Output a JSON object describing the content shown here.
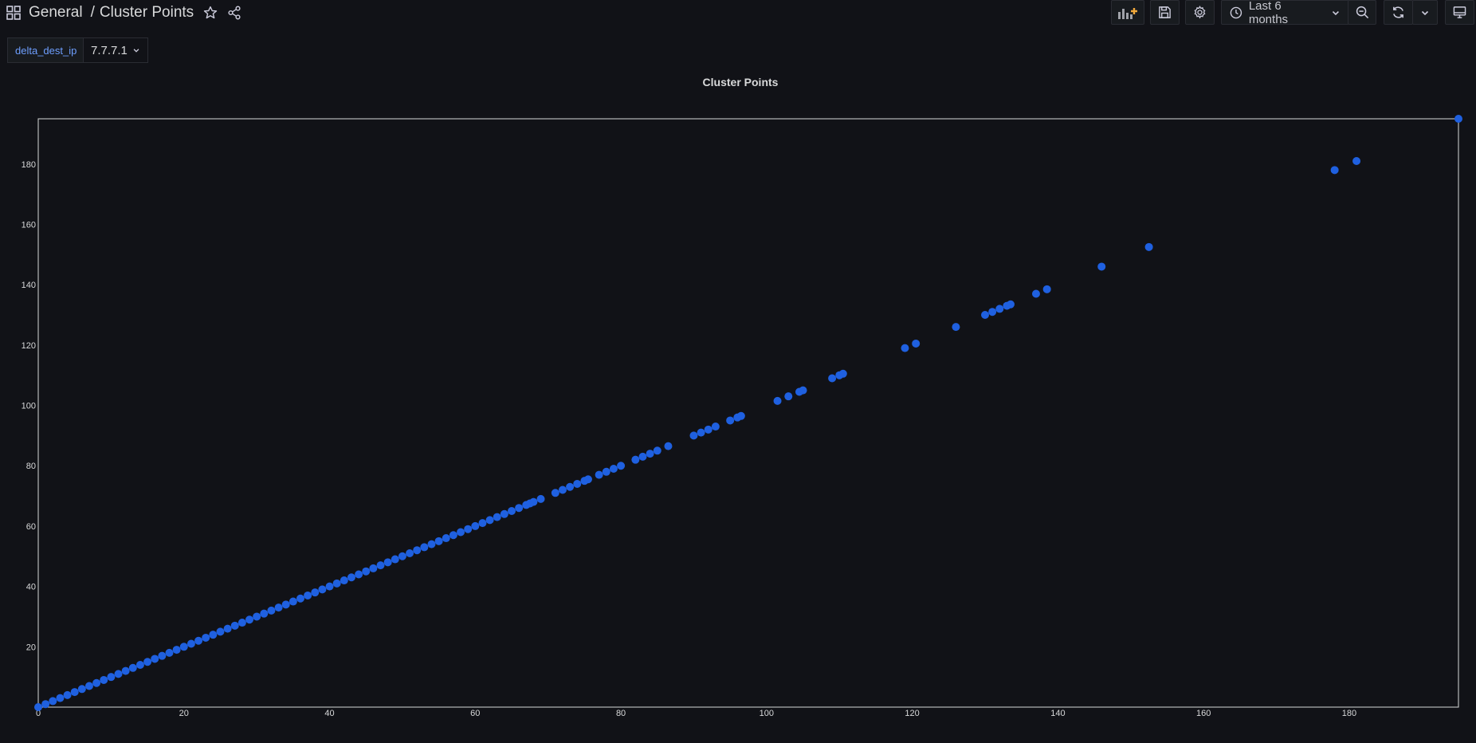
{
  "header": {
    "breadcrumb_folder": "General",
    "breadcrumb_separator": "/",
    "breadcrumb_title": "Cluster Points",
    "time_range_label": "Last 6 months"
  },
  "variables": [
    {
      "label": "delta_dest_ip",
      "value": "7.7.7.1"
    }
  ],
  "panel": {
    "title": "Cluster Points"
  },
  "chart_data": {
    "type": "scatter",
    "title": "Cluster Points",
    "xlabel": "",
    "ylabel": "",
    "xlim": [
      0,
      195
    ],
    "ylim": [
      0,
      195
    ],
    "x_ticks": [
      0,
      20,
      40,
      60,
      80,
      100,
      120,
      140,
      160,
      180
    ],
    "y_ticks": [
      20,
      40,
      60,
      80,
      100,
      120,
      140,
      160,
      180
    ],
    "grid": false,
    "point_color": "#1f60e0",
    "series": [
      {
        "points": [
          [
            0,
            0
          ],
          [
            1,
            1
          ],
          [
            2,
            2
          ],
          [
            3,
            3
          ],
          [
            4,
            4
          ],
          [
            5,
            5
          ],
          [
            6,
            6
          ],
          [
            7,
            7
          ],
          [
            8,
            8
          ],
          [
            9,
            9
          ],
          [
            10,
            10
          ],
          [
            11,
            11
          ],
          [
            12,
            12
          ],
          [
            13,
            13
          ],
          [
            14,
            14
          ],
          [
            15,
            15
          ],
          [
            16,
            16
          ],
          [
            17,
            17
          ],
          [
            18,
            18
          ],
          [
            19,
            19
          ],
          [
            20,
            20
          ],
          [
            21,
            21
          ],
          [
            22,
            22
          ],
          [
            23,
            23
          ],
          [
            24,
            24
          ],
          [
            25,
            25
          ],
          [
            26,
            26
          ],
          [
            27,
            27
          ],
          [
            28,
            28
          ],
          [
            29,
            29
          ],
          [
            30,
            30
          ],
          [
            31,
            31
          ],
          [
            32,
            32
          ],
          [
            33,
            33
          ],
          [
            34,
            34
          ],
          [
            35,
            35
          ],
          [
            36,
            36
          ],
          [
            37,
            37
          ],
          [
            38,
            38
          ],
          [
            39,
            39
          ],
          [
            40,
            40
          ],
          [
            41,
            41
          ],
          [
            42,
            42
          ],
          [
            43,
            43
          ],
          [
            44,
            44
          ],
          [
            45,
            45
          ],
          [
            46,
            46
          ],
          [
            47,
            47
          ],
          [
            48,
            48
          ],
          [
            49,
            49
          ],
          [
            50,
            50
          ],
          [
            51,
            51
          ],
          [
            52,
            52
          ],
          [
            53,
            53
          ],
          [
            54,
            54
          ],
          [
            55,
            55
          ],
          [
            56,
            56
          ],
          [
            57,
            57
          ],
          [
            58,
            58
          ],
          [
            59,
            59
          ],
          [
            60,
            60
          ],
          [
            61,
            61
          ],
          [
            62,
            62
          ],
          [
            63,
            63
          ],
          [
            64,
            64
          ],
          [
            65,
            65
          ],
          [
            66,
            66
          ],
          [
            67,
            67
          ],
          [
            67.5,
            67.5
          ],
          [
            68,
            68
          ],
          [
            69,
            69
          ],
          [
            71,
            71
          ],
          [
            72,
            72
          ],
          [
            73,
            73
          ],
          [
            74,
            74
          ],
          [
            75,
            75
          ],
          [
            75.5,
            75.5
          ],
          [
            77,
            77
          ],
          [
            78,
            78
          ],
          [
            79,
            79
          ],
          [
            80,
            80
          ],
          [
            82,
            82
          ],
          [
            83,
            83
          ],
          [
            84,
            84
          ],
          [
            85,
            85
          ],
          [
            86.5,
            86.5
          ],
          [
            90,
            90
          ],
          [
            91,
            91
          ],
          [
            92,
            92
          ],
          [
            93,
            93
          ],
          [
            95,
            95
          ],
          [
            96,
            96
          ],
          [
            96.5,
            96.5
          ],
          [
            101.5,
            101.5
          ],
          [
            103,
            103
          ],
          [
            104.5,
            104.5
          ],
          [
            105,
            105
          ],
          [
            109,
            109
          ],
          [
            110,
            110
          ],
          [
            110.5,
            110.5
          ],
          [
            119,
            119
          ],
          [
            120.5,
            120.5
          ],
          [
            126,
            126
          ],
          [
            130,
            130
          ],
          [
            131,
            131
          ],
          [
            132,
            132
          ],
          [
            133,
            133
          ],
          [
            133.5,
            133.5
          ],
          [
            137,
            137
          ],
          [
            138.5,
            138.5
          ],
          [
            146,
            146
          ],
          [
            152.5,
            152.5
          ],
          [
            178,
            178
          ],
          [
            181,
            181
          ],
          [
            195,
            195
          ]
        ]
      }
    ]
  }
}
